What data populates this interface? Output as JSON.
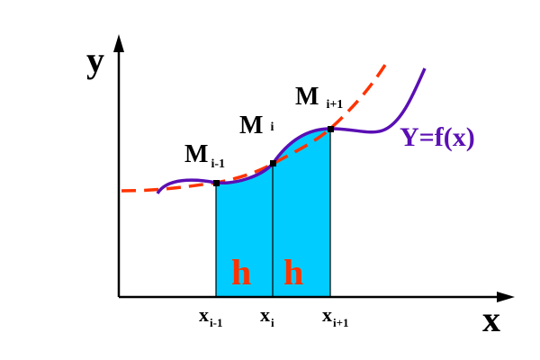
{
  "axes": {
    "y_label": "y",
    "x_label": "x"
  },
  "points": {
    "m_prev": {
      "main": "M",
      "sub": "i-1"
    },
    "m_curr": {
      "main": "M",
      "sub": "i"
    },
    "m_next": {
      "main": "M",
      "sub": "i+1"
    }
  },
  "ticks": {
    "x_prev": {
      "main": "x",
      "sub": "i-1"
    },
    "x_curr": {
      "main": "x",
      "sub": "i"
    },
    "x_next": {
      "main": "x",
      "sub": "i+1"
    }
  },
  "intervals": {
    "h_left": "h",
    "h_right": "h"
  },
  "curve_label": "Y=f(x)",
  "colors": {
    "fill": "#00CCFF",
    "curve": "#5A0FB4",
    "dashed": "#FF3300",
    "axis": "#000000",
    "h_text": "#FF3300"
  }
}
